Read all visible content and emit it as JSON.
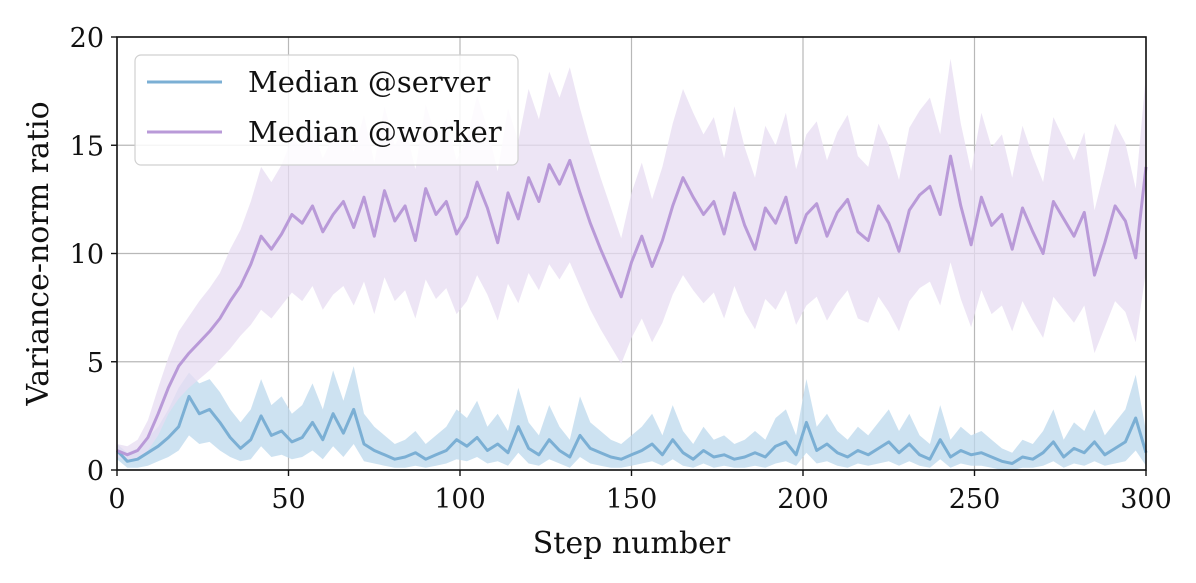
{
  "chart_data": {
    "type": "line",
    "xlabel": "Step number",
    "ylabel": "Variance-norm ratio",
    "xlim": [
      0,
      300
    ],
    "ylim": [
      0,
      20
    ],
    "xticks": [
      "0",
      "50",
      "100",
      "150",
      "200",
      "250",
      "300"
    ],
    "yticks": [
      "0",
      "5",
      "10",
      "15",
      "20"
    ],
    "grid": true,
    "legend_position": "top-left",
    "x": [
      0,
      3,
      6,
      9,
      12,
      15,
      18,
      21,
      24,
      27,
      30,
      33,
      36,
      39,
      42,
      45,
      48,
      51,
      54,
      57,
      60,
      63,
      66,
      69,
      72,
      75,
      78,
      81,
      84,
      87,
      90,
      93,
      96,
      99,
      102,
      105,
      108,
      111,
      114,
      117,
      120,
      123,
      126,
      129,
      132,
      135,
      138,
      141,
      144,
      147,
      150,
      153,
      156,
      159,
      162,
      165,
      168,
      171,
      174,
      177,
      180,
      183,
      186,
      189,
      192,
      195,
      198,
      201,
      204,
      207,
      210,
      213,
      216,
      219,
      222,
      225,
      228,
      231,
      234,
      237,
      240,
      243,
      246,
      249,
      252,
      255,
      258,
      261,
      264,
      267,
      270,
      273,
      276,
      279,
      282,
      285,
      288,
      291,
      294,
      297,
      300
    ],
    "series": [
      {
        "name": "Median @server",
        "color": "#7bafd4",
        "band_color": "#bcd8ec",
        "values": [
          0.9,
          0.4,
          0.5,
          0.8,
          1.1,
          1.5,
          2.0,
          3.4,
          2.6,
          2.8,
          2.2,
          1.5,
          1.0,
          1.4,
          2.5,
          1.6,
          1.8,
          1.3,
          1.5,
          2.2,
          1.4,
          2.6,
          1.7,
          2.8,
          1.2,
          0.9,
          0.7,
          0.5,
          0.6,
          0.8,
          0.5,
          0.7,
          0.9,
          1.4,
          1.1,
          1.5,
          0.9,
          1.2,
          0.8,
          2.0,
          1.0,
          0.7,
          1.4,
          0.9,
          0.6,
          1.6,
          1.0,
          0.8,
          0.6,
          0.5,
          0.7,
          0.9,
          1.2,
          0.7,
          1.4,
          0.8,
          0.5,
          0.9,
          0.6,
          0.7,
          0.5,
          0.6,
          0.8,
          0.6,
          1.1,
          1.3,
          0.7,
          2.2,
          0.9,
          1.2,
          0.8,
          0.6,
          0.9,
          0.7,
          1.0,
          1.3,
          0.8,
          1.2,
          0.7,
          0.5,
          1.4,
          0.6,
          0.9,
          0.7,
          0.8,
          0.6,
          0.4,
          0.3,
          0.6,
          0.5,
          0.8,
          1.3,
          0.6,
          1.0,
          0.8,
          1.3,
          0.7,
          1.0,
          1.3,
          2.4,
          0.8
        ],
        "lower": [
          0.5,
          0.1,
          0.1,
          0.2,
          0.4,
          0.6,
          0.9,
          1.6,
          1.2,
          1.3,
          0.9,
          0.6,
          0.4,
          0.5,
          1.1,
          0.6,
          0.7,
          0.5,
          0.6,
          0.9,
          0.5,
          1.1,
          0.6,
          1.2,
          0.4,
          0.3,
          0.2,
          0.1,
          0.1,
          0.2,
          0.1,
          0.2,
          0.3,
          0.5,
          0.4,
          0.6,
          0.3,
          0.4,
          0.2,
          0.8,
          0.3,
          0.2,
          0.5,
          0.3,
          0.1,
          0.6,
          0.3,
          0.2,
          0.1,
          0.1,
          0.2,
          0.3,
          0.4,
          0.2,
          0.5,
          0.2,
          0.1,
          0.3,
          0.1,
          0.2,
          0.1,
          0.1,
          0.2,
          0.1,
          0.3,
          0.4,
          0.2,
          0.8,
          0.3,
          0.4,
          0.2,
          0.1,
          0.3,
          0.2,
          0.3,
          0.4,
          0.2,
          0.4,
          0.2,
          0.1,
          0.5,
          0.1,
          0.3,
          0.2,
          0.2,
          0.1,
          0.0,
          0.0,
          0.1,
          0.1,
          0.2,
          0.4,
          0.1,
          0.3,
          0.2,
          0.4,
          0.2,
          0.3,
          0.4,
          0.9,
          0.2
        ],
        "upper": [
          1.2,
          0.8,
          1.0,
          1.5,
          2.0,
          2.8,
          3.8,
          4.5,
          4.0,
          4.2,
          3.6,
          2.8,
          2.2,
          2.8,
          4.2,
          3.0,
          3.4,
          2.6,
          3.0,
          4.0,
          2.8,
          4.6,
          3.2,
          4.8,
          2.6,
          2.0,
          1.6,
          1.2,
          1.4,
          1.8,
          1.2,
          1.6,
          2.0,
          2.8,
          2.4,
          3.2,
          2.0,
          2.6,
          1.8,
          3.8,
          2.2,
          1.6,
          3.0,
          2.0,
          1.4,
          3.4,
          2.2,
          1.8,
          1.4,
          1.2,
          1.6,
          2.0,
          2.6,
          1.6,
          3.0,
          1.8,
          1.2,
          2.0,
          1.4,
          1.6,
          1.2,
          1.4,
          1.8,
          1.4,
          2.4,
          2.8,
          1.6,
          4.2,
          2.0,
          2.6,
          1.8,
          1.4,
          2.0,
          1.6,
          2.2,
          2.8,
          1.8,
          2.6,
          1.6,
          1.2,
          3.0,
          1.4,
          2.0,
          1.6,
          1.8,
          1.4,
          1.0,
          0.8,
          1.4,
          1.2,
          1.8,
          2.8,
          1.4,
          2.2,
          1.8,
          2.8,
          1.6,
          2.2,
          2.8,
          4.4,
          1.8
        ]
      },
      {
        "name": "Median @worker",
        "color": "#b99ad8",
        "band_color": "#e7dcf2",
        "values": [
          0.9,
          0.7,
          0.9,
          1.5,
          2.6,
          3.8,
          4.8,
          5.4,
          5.9,
          6.4,
          7.0,
          7.8,
          8.5,
          9.5,
          10.8,
          10.2,
          10.9,
          11.8,
          11.4,
          12.2,
          11.0,
          11.8,
          12.4,
          11.2,
          12.6,
          10.8,
          12.9,
          11.5,
          12.2,
          10.6,
          13.0,
          11.8,
          12.4,
          10.9,
          11.7,
          13.3,
          12.1,
          10.5,
          12.8,
          11.6,
          13.5,
          12.4,
          14.1,
          13.2,
          14.3,
          12.8,
          11.4,
          10.2,
          9.1,
          8.0,
          9.6,
          10.8,
          9.4,
          10.6,
          12.2,
          13.5,
          12.6,
          11.8,
          12.4,
          10.9,
          12.8,
          11.3,
          10.2,
          12.1,
          11.4,
          12.6,
          10.5,
          11.8,
          12.3,
          10.8,
          11.9,
          12.5,
          11.0,
          10.6,
          12.2,
          11.4,
          10.1,
          12.0,
          12.7,
          13.1,
          11.8,
          14.5,
          12.2,
          10.4,
          12.6,
          11.3,
          11.8,
          10.2,
          12.1,
          11.0,
          10.0,
          12.4,
          11.6,
          10.8,
          11.9,
          9.0,
          10.5,
          12.2,
          11.5,
          9.8,
          14.0
        ],
        "lower": [
          0.6,
          0.4,
          0.5,
          0.9,
          1.6,
          2.6,
          3.3,
          3.8,
          4.2,
          4.6,
          5.1,
          5.6,
          6.2,
          6.7,
          7.4,
          7.0,
          7.6,
          8.2,
          7.8,
          8.5,
          7.4,
          8.1,
          8.5,
          7.6,
          8.7,
          7.2,
          8.9,
          7.8,
          8.3,
          7.0,
          8.8,
          7.9,
          8.4,
          7.2,
          7.8,
          9.0,
          8.1,
          6.9,
          8.6,
          7.7,
          9.1,
          8.3,
          9.5,
          8.8,
          9.6,
          8.5,
          7.4,
          6.5,
          5.7,
          4.9,
          6.1,
          7.0,
          5.9,
          6.8,
          8.1,
          9.0,
          8.3,
          7.7,
          8.2,
          7.0,
          8.5,
          7.3,
          6.5,
          7.9,
          7.4,
          8.3,
          6.7,
          7.6,
          8.0,
          6.9,
          7.7,
          8.3,
          7.0,
          6.8,
          8.0,
          7.3,
          6.4,
          7.8,
          8.4,
          8.7,
          7.6,
          9.6,
          7.9,
          6.6,
          8.3,
          7.2,
          7.6,
          6.4,
          7.8,
          6.9,
          6.1,
          8.0,
          7.4,
          6.8,
          7.6,
          5.4,
          6.6,
          7.8,
          7.3,
          5.9,
          9.2
        ],
        "upper": [
          1.2,
          1.1,
          1.4,
          2.3,
          3.8,
          5.2,
          6.4,
          7.1,
          7.8,
          8.4,
          9.1,
          10.2,
          11.1,
          12.4,
          14.0,
          13.3,
          14.1,
          15.3,
          14.9,
          15.8,
          14.4,
          15.4,
          16.1,
          14.7,
          16.4,
          14.2,
          16.8,
          15.0,
          15.9,
          13.9,
          16.9,
          15.4,
          16.2,
          14.3,
          15.3,
          17.3,
          15.8,
          13.8,
          16.7,
          15.2,
          17.6,
          16.2,
          18.4,
          17.2,
          18.6,
          16.7,
          15.0,
          13.5,
          12.1,
          10.7,
          12.8,
          14.2,
          12.5,
          14.0,
          16.0,
          17.6,
          16.5,
          15.5,
          16.3,
          14.4,
          16.8,
          14.9,
          13.5,
          15.9,
          15.0,
          16.5,
          13.9,
          15.5,
          16.1,
          14.3,
          15.6,
          16.4,
          14.5,
          14.0,
          16.0,
          15.0,
          13.4,
          15.8,
          16.6,
          17.2,
          15.5,
          19.0,
          16.0,
          13.8,
          16.5,
          14.9,
          15.5,
          13.5,
          15.9,
          14.5,
          13.3,
          16.3,
          15.3,
          14.3,
          15.6,
          12.0,
          13.9,
          16.0,
          15.1,
          13.0,
          18.3
        ]
      }
    ]
  }
}
